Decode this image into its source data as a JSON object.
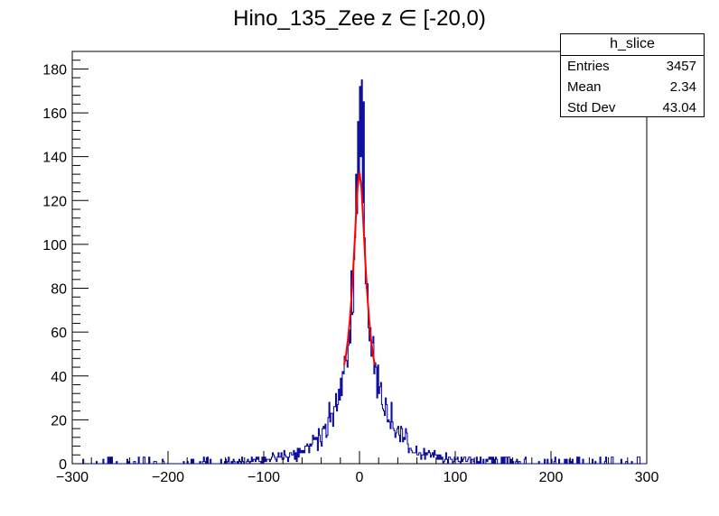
{
  "chart_data": {
    "type": "bar",
    "title_main": "Hino_135_Zee z",
    "title_range": " ∈ [-20,0)",
    "xlabel": "",
    "ylabel": "",
    "xlim": [
      -300,
      300
    ],
    "ylim": [
      0,
      188
    ],
    "x_ticks": [
      -300,
      -200,
      -100,
      0,
      100,
      200,
      300
    ],
    "x_tick_labels": [
      "−300",
      "−200",
      "−100",
      "0",
      "100",
      "200",
      "300"
    ],
    "y_ticks": [
      0,
      20,
      40,
      60,
      80,
      100,
      120,
      140,
      160,
      180
    ],
    "y_tick_labels": [
      "0",
      "20",
      "40",
      "60",
      "80",
      "100",
      "120",
      "140",
      "160",
      "180"
    ],
    "histogram": {
      "name": "h_slice",
      "color": "#000099",
      "bin_width": 1,
      "profile": {
        "x": [
          -300,
          -200,
          -150,
          -100,
          -80,
          -60,
          -50,
          -40,
          -30,
          -20,
          -15,
          -10,
          -5,
          -2,
          0,
          2,
          5,
          10,
          15,
          20,
          30,
          40,
          50,
          60,
          80,
          100,
          150,
          200,
          300
        ],
        "y": [
          0.2,
          0.4,
          0.8,
          1.5,
          3,
          5,
          9,
          14,
          20,
          32,
          44,
          60,
          100,
          135,
          150,
          138,
          105,
          62,
          46,
          35,
          24,
          15,
          9,
          5,
          3,
          1.5,
          0.8,
          0.4,
          0.2
        ]
      },
      "peak_bins": [
        {
          "x": 0,
          "y": 172
        },
        {
          "x": 2,
          "y": 175
        },
        {
          "x": 4,
          "y": 165
        }
      ]
    },
    "fit": {
      "color": "#ff0000",
      "x": [
        -16,
        -14,
        -12,
        -10,
        -8,
        -6,
        -4,
        -2,
        0,
        2,
        4,
        6,
        8,
        10,
        12,
        14,
        16
      ],
      "y": [
        45,
        50,
        57,
        66,
        78,
        93,
        110,
        126,
        133,
        126,
        110,
        93,
        78,
        66,
        57,
        50,
        45
      ]
    },
    "stats_box": {
      "title": "h_slice",
      "entries_label": "Entries",
      "entries_value": "3457",
      "mean_label": "Mean",
      "mean_value": "2.34",
      "stddev_label": "Std Dev",
      "stddev_value": "43.04"
    }
  }
}
